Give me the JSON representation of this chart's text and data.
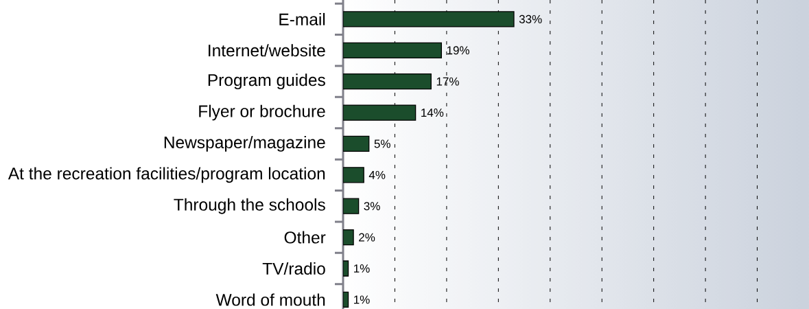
{
  "chart_data": {
    "type": "bar",
    "orientation": "horizontal",
    "categories": [
      "E-mail",
      "Internet/website",
      "Program guides",
      "Flyer or brochure",
      "Newspaper/magazine",
      "At the recreation facilities/program location",
      "Through the schools",
      "Other",
      "TV/radio",
      "Word of mouth"
    ],
    "values": [
      33,
      19,
      17,
      14,
      5,
      4,
      3,
      2,
      1,
      1
    ],
    "value_labels": [
      "33%",
      "19%",
      "17%",
      "14%",
      "5%",
      "4%",
      "3%",
      "2%",
      "1%",
      "1%"
    ],
    "color": "#1b4d2c",
    "xlim": [
      0,
      90
    ],
    "xticks": [
      {
        "value": 10,
        "label": null
      },
      {
        "value": 20,
        "label": null
      },
      {
        "value": 30,
        "label": null
      },
      {
        "value": 40,
        "label": null
      },
      {
        "value": 50,
        "label": null
      },
      {
        "value": 60,
        "label": null
      },
      {
        "value": 70,
        "label": null
      },
      {
        "value": 80,
        "label": null
      }
    ],
    "grid": "x",
    "tick_labels": "y"
  }
}
